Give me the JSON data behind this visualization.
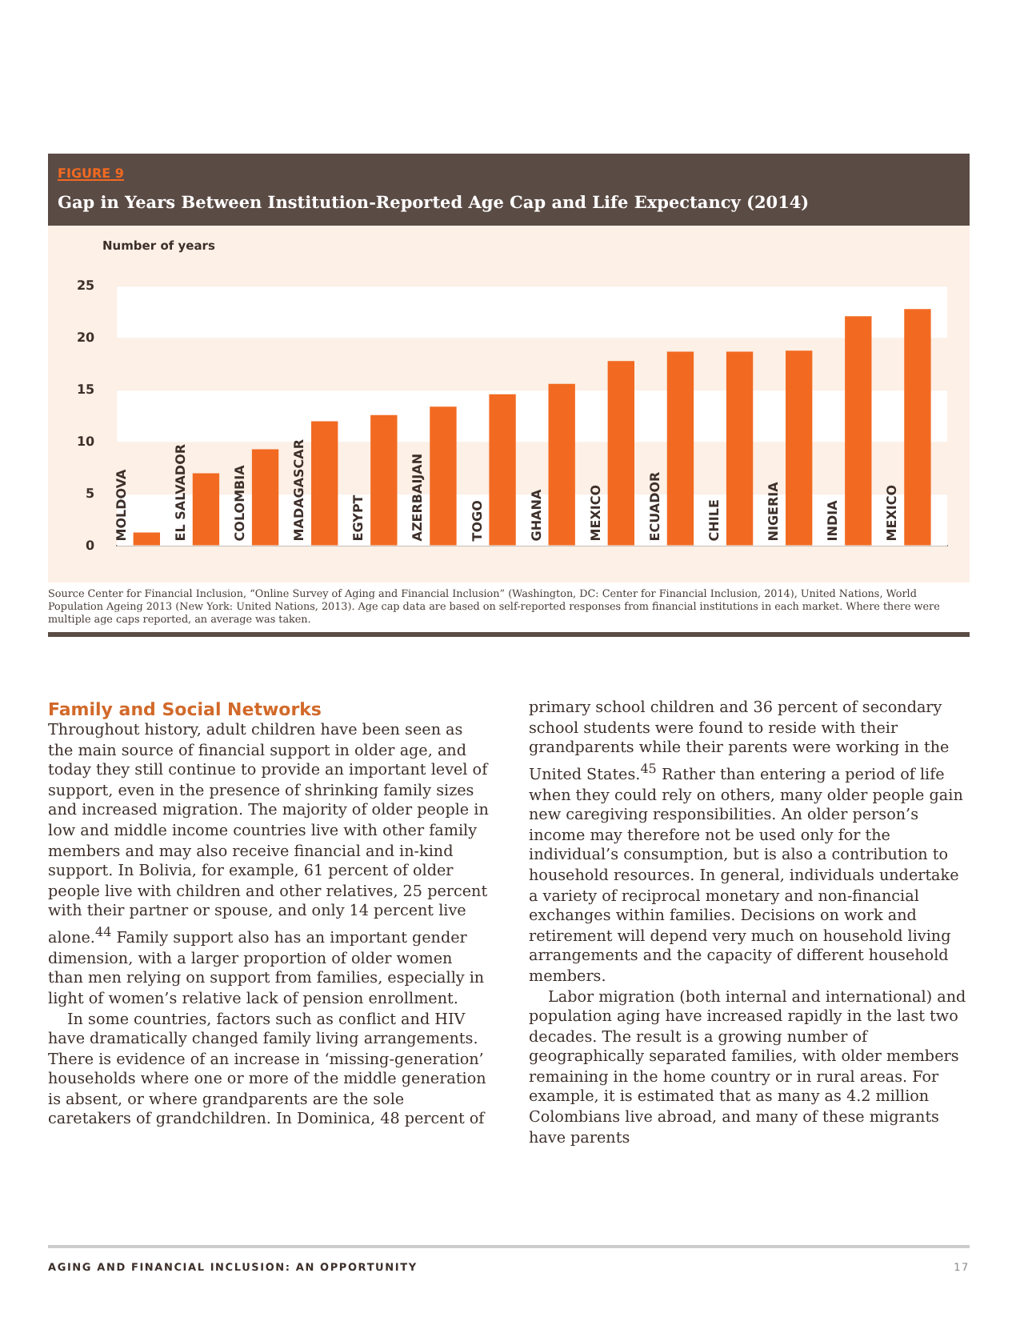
{
  "chart_data": {
    "type": "bar",
    "subtitle": "FIGURE 9",
    "title": "Gap in Years Between Institution-Reported Age Cap and Life Expectancy (2014)",
    "ylabel": "Number of years",
    "categories": [
      "MOLDOVA",
      "EL SALVADOR",
      "COLOMBIA",
      "MADAGASCAR",
      "EGYPT",
      "AZERBAIJAN",
      "TOGO",
      "GHANA",
      "MEXICO",
      "ECUADOR",
      "CHILE",
      "NIGERIA",
      "INDIA",
      "MEXICO"
    ],
    "values": [
      1.3,
      7.0,
      9.3,
      12.0,
      12.6,
      13.4,
      14.6,
      15.6,
      17.8,
      18.7,
      18.7,
      18.8,
      22.1,
      22.8
    ],
    "color": "#f26a21",
    "ylim": [
      0,
      25
    ],
    "yticks": [
      0,
      5,
      10,
      15,
      20,
      25
    ],
    "grid": "y",
    "legend": false,
    "annotations": [
      "Source Center for Financial Inclusion, “Online Survey of Aging and Financial Inclusion” (Washington, DC: Center for Financial Inclusion, 2014), United Nations, World Population Ageing 2013 (New York: United Nations, 2013). Age cap data are based on self-reported responses from financial institutions in each market. Where there were multiple age caps reported, an average was taken.",
      "Family and Social Networks",
      "Throughout history, adult children have been seen as the main source of financial support in older age, and today they still continue to provide an important level of support, even in the presence of shrinking family sizes and increased migration. The majority of older people in low and middle income countries live with other family members and may also receive financial and in-kind support. In Bolivia, for example, 61 percent of older people live with children and other relatives, 25 percent with their partner or spouse, and only 14 percent live alone.$^{44}$ Family support also has an important gender dimension, with a larger proportion of older women than men relying on support from families, especially in light of women’s relative lack of pension enrollment.",
      "In some countries, factors such as conflict and HIV have dramatically changed family living arrangements. There is evidence of an increase in ‘missing-generation’ households where one or more of the middle generation is absent, or where grandparents are the sole caretakers of grandchildren. In Dominica, 48 percent of primary school children and 36 percent of secondary school students were found to reside with their grandparents while their parents were working in the United States.$^{45}$ Rather than entering a period of life when they could rely on others, many older people gain new caregiving responsibilities. An older person’s income may therefore not be used only for the individual’s consumption, but is also a contribution to household resources. In general, individuals undertake a variety of reciprocal monetary and non-financial exchanges within families. Decisions on work and retirement will depend very much on household living arrangements and the capacity of different household members.",
      "Labor migration (both internal and international) and population aging have increased rapidly in the last two decades. The result is a growing number of geographically separated families, with older members remaining in the home country or in rural areas. For example, it is estimated that as many as 4.2 million Colombians live abroad, and many of these migrants have parents",
      "AGING AND FINANCIAL INCLUSION: AN OPPORTUNITY",
      "17"
    ]
  }
}
